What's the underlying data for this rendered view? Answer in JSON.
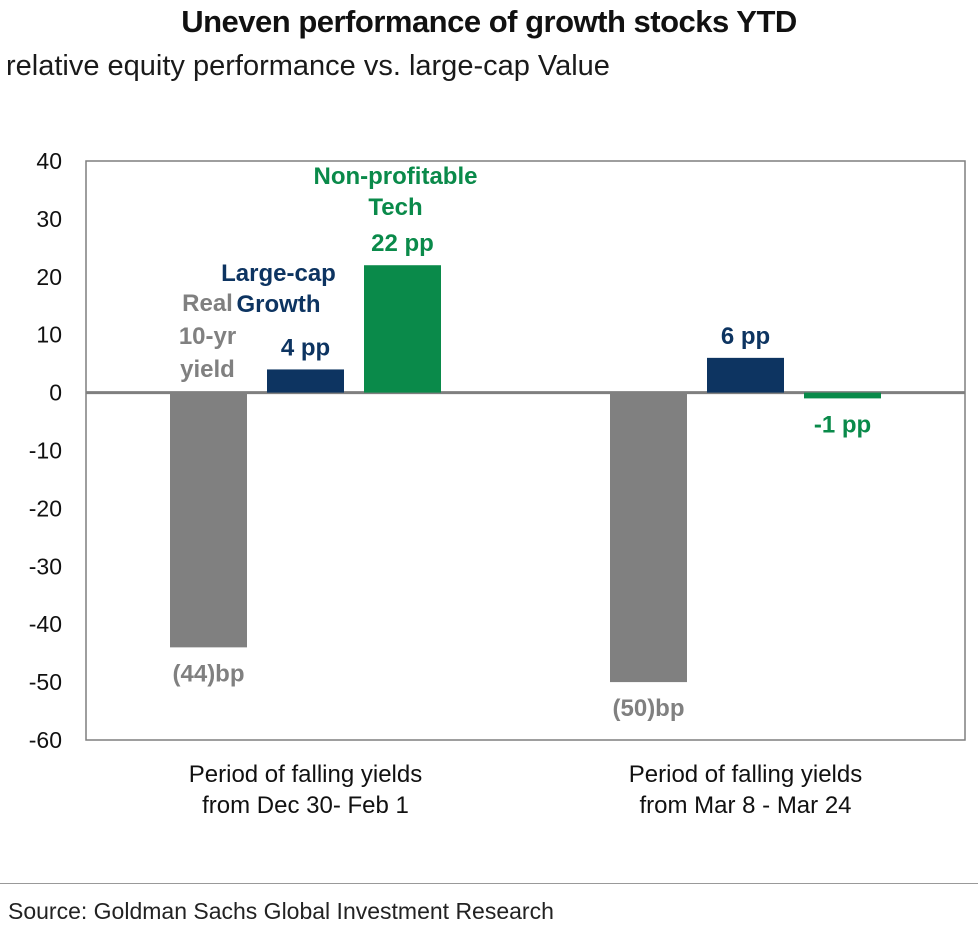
{
  "title": "Uneven performance of growth stocks YTD",
  "subtitle": "relative equity performance vs. large-cap Value",
  "source": "Source: Goldman Sachs Global Investment Research",
  "colors": {
    "gray": "#808080",
    "navy": "#0d3461",
    "green": "#0a8a4a"
  },
  "chart_data": {
    "type": "bar",
    "title": "Uneven performance of growth stocks YTD",
    "xlabel": "",
    "ylabel": "",
    "ylim": [
      -60,
      40
    ],
    "yticks": [
      40,
      30,
      20,
      10,
      0,
      -10,
      -20,
      -30,
      -40,
      -50,
      -60
    ],
    "grid": false,
    "categories": [
      [
        "Period of falling yields",
        "from Dec 30- Feb 1"
      ],
      [
        "Period of falling yields",
        "from Mar 8 - Mar 24"
      ]
    ],
    "series": [
      {
        "name": [
          "Real",
          "10-yr",
          "yield"
        ],
        "color": "#808080",
        "values": [
          -44,
          -50
        ],
        "labels": [
          "(44)bp",
          "(50)bp"
        ]
      },
      {
        "name": [
          "Large-cap",
          "Growth"
        ],
        "color": "#0d3461",
        "values": [
          4,
          6
        ],
        "labels": [
          "4 pp",
          "6 pp"
        ]
      },
      {
        "name": [
          "Non-profitable",
          "Tech"
        ],
        "color": "#0a8a4a",
        "values": [
          22,
          -1
        ],
        "labels": [
          "22 pp",
          "-1 pp"
        ]
      }
    ]
  }
}
